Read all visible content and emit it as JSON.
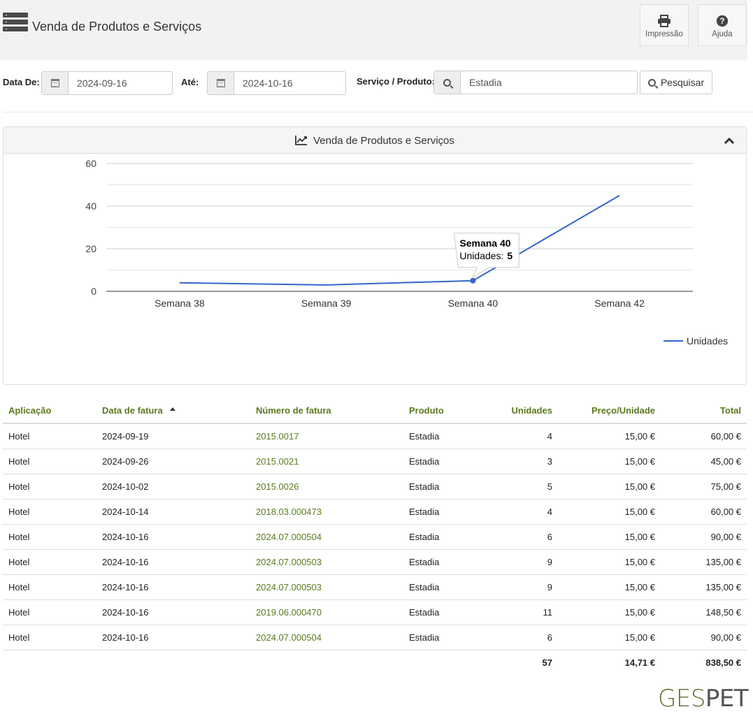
{
  "header": {
    "title": "Venda de Produtos e Serviços",
    "print_label": "Impressão",
    "help_label": "Ajuda"
  },
  "filters": {
    "date_from_label": "Data De:",
    "date_from": "2024-09-16",
    "date_to_label": "Até:",
    "date_to": "2024-10-16",
    "service_label": "Serviço / Produto:",
    "service_value": "Estadia",
    "search_label": "Pesquisar"
  },
  "panel": {
    "title": "Venda de Produtos e Serviços"
  },
  "chart_data": {
    "type": "line",
    "categories": [
      "Semana 38",
      "Semana 39",
      "Semana 40",
      "Semana 42"
    ],
    "series": [
      {
        "name": "Unidades",
        "values": [
          4,
          3,
          5,
          45
        ],
        "color": "#3366cc"
      }
    ],
    "ylim": [
      0,
      60
    ],
    "yticks": [
      0,
      20,
      40,
      60
    ],
    "grid": true,
    "legend": "bottom-right",
    "tooltip": {
      "category": "Semana 40",
      "label": "Unidades:",
      "value": "5"
    }
  },
  "table": {
    "columns": [
      "Aplicação",
      "Data de fatura",
      "Número de fatura",
      "Produto",
      "Unidades",
      "Preço/Unidade",
      "Total"
    ],
    "rows": [
      [
        "Hotel",
        "2024-09-19",
        "2015.0017",
        "Estadia",
        "4",
        "15,00 €",
        "60,00 €"
      ],
      [
        "Hotel",
        "2024-09-26",
        "2015.0021",
        "Estadia",
        "3",
        "15,00 €",
        "45,00 €"
      ],
      [
        "Hotel",
        "2024-10-02",
        "2015.0026",
        "Estadia",
        "5",
        "15,00 €",
        "75,00 €"
      ],
      [
        "Hotel",
        "2024-10-14",
        "2018.03.000473",
        "Estadia",
        "4",
        "15,00 €",
        "60,00 €"
      ],
      [
        "Hotel",
        "2024-10-16",
        "2024.07.000504",
        "Estadia",
        "6",
        "15,00 €",
        "90,00 €"
      ],
      [
        "Hotel",
        "2024-10-16",
        "2024.07.000503",
        "Estadia",
        "9",
        "15,00 €",
        "135,00 €"
      ],
      [
        "Hotel",
        "2024-10-16",
        "2024.07.000503",
        "Estadia",
        "9",
        "15,00 €",
        "135,00 €"
      ],
      [
        "Hotel",
        "2024-10-16",
        "2019.06.000470",
        "Estadia",
        "11",
        "15,00 €",
        "148,50 €"
      ],
      [
        "Hotel",
        "2024-10-16",
        "2024.07.000504",
        "Estadia",
        "6",
        "15,00 €",
        "90,00 €"
      ]
    ],
    "totals": {
      "units": "57",
      "unit_price": "14,71 €",
      "total": "838,50 €"
    }
  },
  "brand": {
    "part1": "GES",
    "part2": "PET"
  },
  "colors": {
    "accent": "#5a7a1e",
    "line": "#3366cc"
  }
}
